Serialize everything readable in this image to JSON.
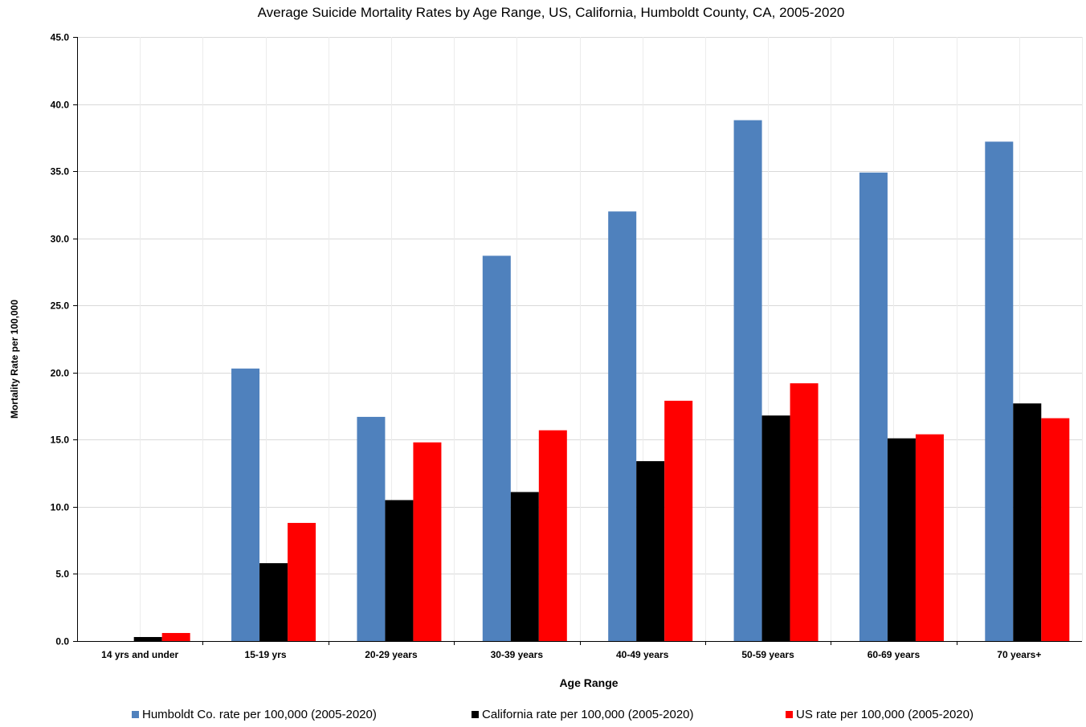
{
  "chart_data": {
    "type": "bar",
    "title": "Average Suicide Mortality Rates by Age Range, US, California, Humboldt County, CA, 2005-2020",
    "xlabel": "Age Range",
    "ylabel": "Mortality Rate per 100,000",
    "ylim": [
      0,
      45
    ],
    "ytick_step": 5,
    "ytick_labels": [
      "0.0",
      "5.0",
      "10.0",
      "15.0",
      "20.0",
      "25.0",
      "30.0",
      "35.0",
      "40.0",
      "45.0"
    ],
    "grid": true,
    "legend_position": "bottom",
    "categories": [
      "14 yrs and under",
      "15-19 yrs",
      "20-29 years",
      "30-39 years",
      "40-49 years",
      "50-59 years",
      "60-69 years",
      "70 years+"
    ],
    "series": [
      {
        "name": "Humboldt Co. rate per 100,000 (2005-2020)",
        "color": "#4f81bd",
        "values": [
          0,
          20.3,
          16.7,
          28.7,
          32.0,
          38.8,
          34.9,
          37.2
        ]
      },
      {
        "name": "California rate per 100,000 (2005-2020)",
        "color": "#000000",
        "values": [
          0.3,
          5.8,
          10.5,
          11.1,
          13.4,
          16.8,
          15.1,
          17.7
        ]
      },
      {
        "name": "US rate per 100,000 (2005-2020)",
        "color": "#ff0000",
        "values": [
          0.6,
          8.8,
          14.8,
          15.7,
          17.9,
          19.2,
          15.4,
          16.6
        ]
      }
    ]
  }
}
